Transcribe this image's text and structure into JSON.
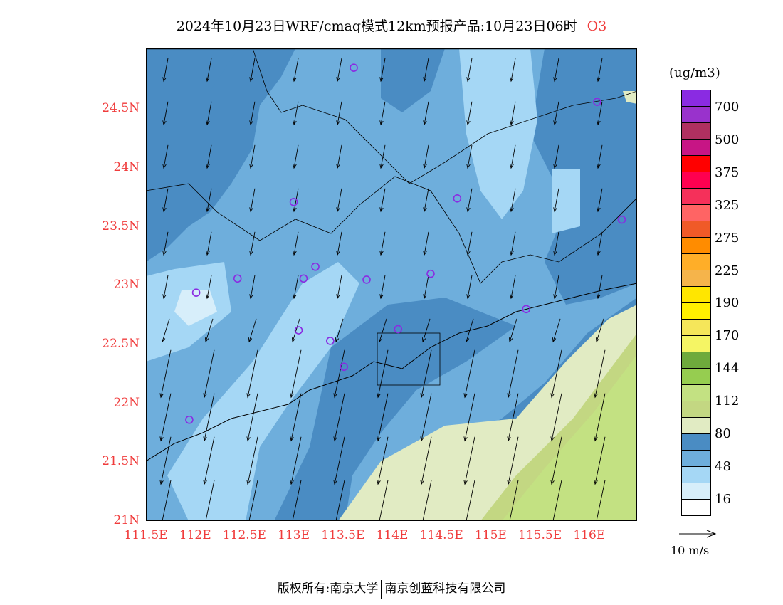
{
  "title": {
    "text": "2024年10月23日WRF/cmaq模式12km预报产品:10月23日06时",
    "species": "O3"
  },
  "axes": {
    "lat_labels": [
      {
        "lat": 24.5,
        "text": "24.5N"
      },
      {
        "lat": 24,
        "text": "24N"
      },
      {
        "lat": 23.5,
        "text": "23.5N"
      },
      {
        "lat": 23,
        "text": "23N"
      },
      {
        "lat": 22.5,
        "text": "22.5N"
      },
      {
        "lat": 22,
        "text": "22N"
      },
      {
        "lat": 21.5,
        "text": "21.5N"
      },
      {
        "lat": 21,
        "text": "21N"
      }
    ],
    "lon_labels": [
      {
        "lon": 111.5,
        "text": "111.5E"
      },
      {
        "lon": 112,
        "text": "112E"
      },
      {
        "lon": 112.5,
        "text": "112.5E"
      },
      {
        "lon": 113,
        "text": "113E"
      },
      {
        "lon": 113.5,
        "text": "113.5E"
      },
      {
        "lon": 114,
        "text": "114E"
      },
      {
        "lon": 114.5,
        "text": "114.5E"
      },
      {
        "lon": 115,
        "text": "115E"
      },
      {
        "lon": 115.5,
        "text": "115.5E"
      },
      {
        "lon": 116,
        "text": "116E"
      }
    ],
    "lon_range": [
      111.5,
      116.5
    ],
    "lat_range": [
      21,
      25
    ]
  },
  "colorbar": {
    "unit": "(ug/m3)",
    "colors": [
      "#8a2be2",
      "#9932cc",
      "#b03060",
      "#c71585",
      "#ff0000",
      "#ff0050",
      "#f5305a",
      "#ff6464",
      "#f05a28",
      "#ff8c00",
      "#ffae28",
      "#f5b44b",
      "#ffe600",
      "#fff000",
      "#f5e65a",
      "#f5f564",
      "#6eaa3c",
      "#96cd50",
      "#c3e182",
      "#c3d782",
      "#e1ebc3",
      "#4a8cc3",
      "#6eaedc",
      "#a5d7f5",
      "#d7eefa",
      "#ffffff"
    ],
    "labels": [
      "700",
      "500",
      "375",
      "325",
      "275",
      "225",
      "190",
      "170",
      "144",
      "112",
      "80",
      "48",
      "16"
    ]
  },
  "wind_reference": {
    "label": "10 m/s"
  },
  "stations": [
    [
      113.61,
      24.85
    ],
    [
      116.08,
      24.56
    ],
    [
      113.0,
      23.71
    ],
    [
      114.66,
      23.74
    ],
    [
      116.33,
      23.56
    ],
    [
      112.43,
      23.06
    ],
    [
      112.01,
      22.94
    ],
    [
      113.22,
      23.16
    ],
    [
      113.1,
      23.06
    ],
    [
      113.74,
      23.05
    ],
    [
      114.39,
      23.1
    ],
    [
      115.36,
      22.8
    ],
    [
      113.05,
      22.62
    ],
    [
      113.37,
      22.53
    ],
    [
      114.06,
      22.63
    ],
    [
      113.51,
      22.31
    ],
    [
      111.94,
      21.86
    ]
  ],
  "footer": {
    "left": "版权所有:南京大学",
    "right": "南京创蓝科技有限公司"
  }
}
